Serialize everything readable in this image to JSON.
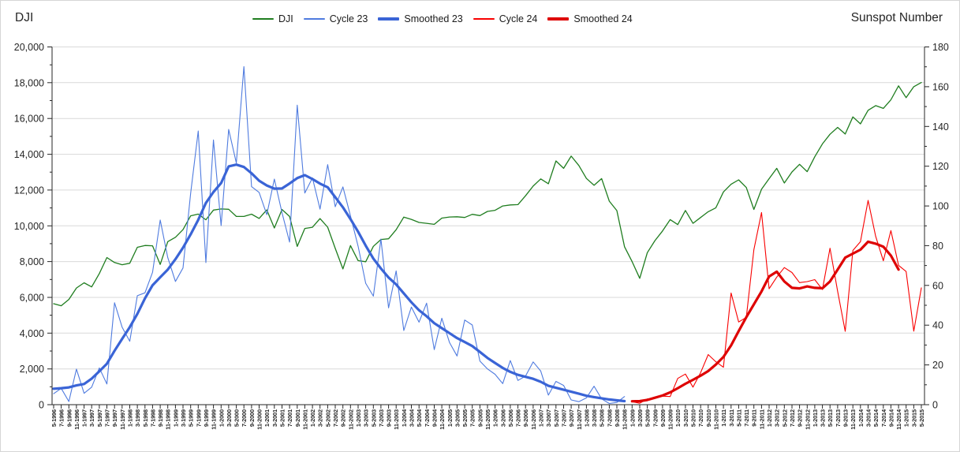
{
  "chart_data": {
    "type": "line",
    "left_axis": {
      "title": "DJI",
      "min": 0,
      "max": 20000,
      "tick_step": 2000,
      "minor_step": 1000,
      "tick_labels": [
        "0",
        "2,000",
        "4,000",
        "6,000",
        "8,000",
        "10,000",
        "12,000",
        "14,000",
        "16,000",
        "18,000",
        "20,000"
      ]
    },
    "right_axis": {
      "title": "Sunspot Number",
      "min": 0,
      "max": 180,
      "tick_step": 20,
      "minor_step": 10,
      "tick_labels": [
        "0",
        "20",
        "40",
        "60",
        "80",
        "100",
        "120",
        "140",
        "160",
        "180"
      ]
    },
    "grid": "horizontal",
    "legend_position": "top-center",
    "colors": {
      "grid": "#d9d9d9",
      "axis": "#262626",
      "text": "#262626",
      "background": "#ffffff"
    },
    "x_labels": [
      "5-1996",
      "7-1996",
      "9-1996",
      "11-1996",
      "1-1997",
      "3-1997",
      "5-1997",
      "7-1997",
      "9-1997",
      "11-1997",
      "1-1998",
      "3-1998",
      "5-1998",
      "7-1998",
      "9-1998",
      "11-1998",
      "1-1999",
      "3-1999",
      "5-1999",
      "7-1999",
      "9-1999",
      "11-1999",
      "1-2000",
      "3-2000",
      "5-2000",
      "7-2000",
      "9-2000",
      "11-2000",
      "1-2001",
      "3-2001",
      "5-2001",
      "7-2001",
      "9-2001",
      "11-2001",
      "1-2002",
      "3-2002",
      "5-2002",
      "7-2002",
      "9-2002",
      "11-2002",
      "1-2003",
      "3-2003",
      "5-2003",
      "7-2003",
      "9-2003",
      "11-2003",
      "1-2004",
      "3-2004",
      "5-2004",
      "7-2004",
      "9-2004",
      "11-2004",
      "1-2005",
      "3-2005",
      "5-2005",
      "7-2005",
      "9-2005",
      "11-2005",
      "1-2006",
      "3-2006",
      "5-2006",
      "7-2006",
      "9-2006",
      "11-2006",
      "1-2007",
      "3-2007",
      "5-2007",
      "7-2007",
      "9-2007",
      "11-2007",
      "1-2008",
      "3-2008",
      "5-2008",
      "7-2008",
      "9-2008",
      "11-2008",
      "1-2009",
      "3-2009",
      "5-2009",
      "7-2009",
      "9-2009",
      "11-2009",
      "1-2010",
      "3-2010",
      "5-2010",
      "7-2010",
      "9-2010",
      "11-2010",
      "1-2011",
      "3-2011",
      "5-2011",
      "7-2011",
      "9-2011",
      "11-2011",
      "1-2012",
      "3-2012",
      "5-2012",
      "7-2012",
      "9-2012",
      "11-2012",
      "1-2013",
      "3-2013",
      "5-2013",
      "7-2013",
      "9-2013",
      "11-2013",
      "1-2014",
      "3-2014",
      "5-2014",
      "7-2014",
      "9-2014",
      "11-2014",
      "1-2015",
      "3-2015",
      "5-2015"
    ],
    "series": [
      {
        "name": "DJI",
        "axis": "left",
        "color": "#1f7d1f",
        "width": 1.3,
        "start_index": 0,
        "values": [
          5643,
          5529,
          5882,
          6522,
          6813,
          6584,
          7331,
          8223,
          7945,
          7823,
          7907,
          8800,
          8900,
          8883,
          7843,
          9117,
          9359,
          9786,
          10560,
          10655,
          10337,
          10878,
          10941,
          10922,
          10522,
          10522,
          10651,
          10414,
          10887,
          9879,
          10912,
          10523,
          8848,
          9852,
          9920,
          10404,
          9925,
          8737,
          7592,
          8896,
          8054,
          7992,
          8850,
          9234,
          9275,
          9782,
          10488,
          10358,
          10188,
          10140,
          10080,
          10428,
          10490,
          10504,
          10467,
          10641,
          10569,
          10806,
          10865,
          11109,
          11168,
          11186,
          11679,
          12222,
          12622,
          12354,
          13628,
          13212,
          13896,
          13372,
          12650,
          12263,
          12638,
          11378,
          10851,
          8829,
          8001,
          7063,
          8500,
          9172,
          9712,
          10345,
          10067,
          10857,
          10137,
          10466,
          10788,
          11006,
          11892,
          12320,
          12570,
          12143,
          10913,
          12046,
          12633,
          13212,
          12393,
          13009,
          13437,
          13026,
          13861,
          14579,
          15116,
          15500,
          15130,
          16086,
          15699,
          16458,
          16717,
          16563,
          17043,
          17828,
          17165,
          17776,
          18011
        ]
      },
      {
        "name": "Cycle 23",
        "axis": "right",
        "color": "#4f7bdf",
        "width": 1.1,
        "start_index": 0,
        "values": [
          5.5,
          8.2,
          1.6,
          17.9,
          5.7,
          8.8,
          18.5,
          10.4,
          51.3,
          39,
          31.9,
          54.8,
          56.3,
          66.6,
          92.9,
          74,
          62,
          68.8,
          106.4,
          137.7,
          71.5,
          133.2,
          90.1,
          138.5,
          121.6,
          170.1,
          109.7,
          106.8,
          95.6,
          113.5,
          96.6,
          81.8,
          150.7,
          106.5,
          114.1,
          98.4,
          120.8,
          99.6,
          109.6,
          95,
          79.7,
          61.1,
          54.6,
          83.3,
          48.7,
          67.3,
          37.3,
          49.1,
          41.5,
          51.1,
          27.7,
          43.5,
          31.3,
          24.5,
          42.6,
          40.1,
          21.9,
          18,
          15.3,
          10.6,
          22.2,
          12.2,
          14.4,
          21.5,
          16.9,
          4.8,
          11.7,
          9.7,
          2.4,
          1.5,
          3.4,
          9.3,
          2.9,
          0.6,
          1.1,
          4.1
        ]
      },
      {
        "name": "Smoothed 23",
        "axis": "right",
        "color": "#3a64d6",
        "width": 3.2,
        "start_index": 0,
        "values": [
          8,
          8.3,
          8.7,
          9.7,
          10.4,
          13.1,
          16.8,
          20.6,
          27.1,
          33.1,
          39,
          45.7,
          53.5,
          60.1,
          64.1,
          68,
          73.2,
          79,
          85.7,
          93,
          101.5,
          107,
          111.5,
          119.9,
          120.8,
          119.6,
          116.4,
          112.7,
          110.3,
          108.7,
          108.8,
          111.3,
          114,
          115.5,
          113.5,
          111.2,
          109.4,
          104.4,
          99.3,
          93.4,
          87,
          80,
          73.5,
          68.5,
          64,
          60.5,
          56,
          51.5,
          47.5,
          44.5,
          41,
          38.5,
          36,
          33.5,
          31.5,
          29.5,
          26.5,
          23.5,
          21,
          18.5,
          16.5,
          15,
          14,
          13,
          11.5,
          9.5,
          8.5,
          7.5,
          6.5,
          5.5,
          4.5,
          3.8,
          3.2,
          2.6,
          2.2,
          1.8
        ]
      },
      {
        "name": "Cycle 24",
        "axis": "right",
        "color": "#f80000",
        "width": 1.1,
        "start_index": 76,
        "values": [
          1.5,
          0.7,
          2.9,
          3.2,
          4.3,
          4.1,
          13.2,
          15.4,
          8.8,
          16.1,
          25.2,
          21.6,
          18.8,
          56.2,
          41.6,
          43.9,
          78,
          96.7,
          58.3,
          64.2,
          69,
          66.5,
          61.4,
          61.9,
          62.9,
          57.9,
          78.7,
          57,
          36.9,
          77.6,
          82,
          102.8,
          84.7,
          72.4,
          87.6,
          70.1,
          67,
          37,
          58.8
        ]
      },
      {
        "name": "Smoothed 24",
        "axis": "right",
        "color": "#de0202",
        "width": 3.2,
        "start_index": 76,
        "values": [
          1.7,
          1.8,
          2.4,
          3.5,
          4.6,
          6.2,
          8.3,
          10.5,
          12.5,
          14.6,
          16.9,
          20.2,
          24,
          29.8,
          37,
          44,
          50.5,
          57,
          64.5,
          66.9,
          62,
          58.8,
          58.5,
          59.5,
          58.8,
          58.6,
          62,
          68,
          74,
          76,
          78,
          82,
          81,
          79.5,
          75,
          68
        ]
      }
    ]
  }
}
